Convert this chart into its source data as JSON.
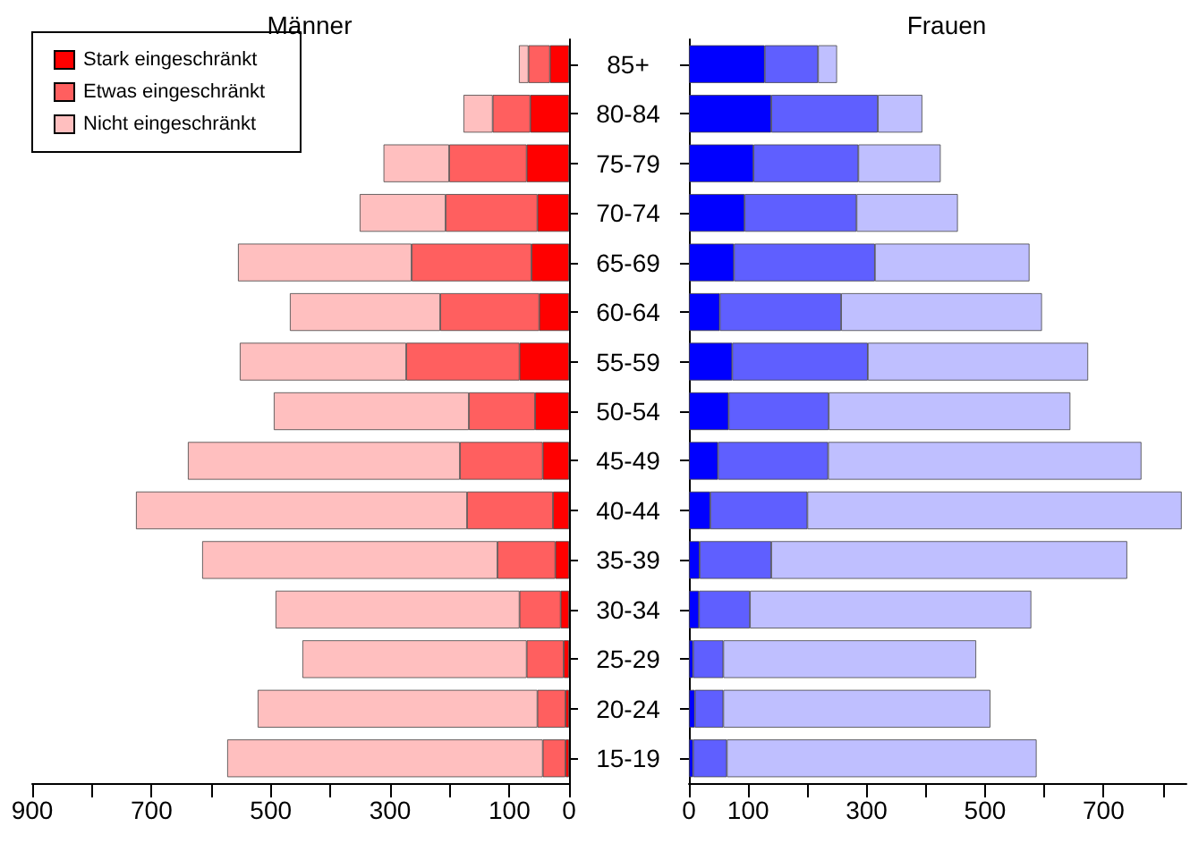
{
  "chart_data": [
    {
      "type": "bar",
      "title": "Männer",
      "orientation": "horizontal",
      "stacked": true,
      "legend": "top left",
      "grid": false,
      "categories": [
        "85+",
        "80-84",
        "75-79",
        "70-74",
        "65-69",
        "60-64",
        "55-59",
        "50-54",
        "45-49",
        "40-44",
        "35-39",
        "30-34",
        "25-29",
        "20-24",
        "15-19"
      ],
      "series": [
        {
          "name": "Stark eingeschränkt",
          "color": "#ff0000",
          "values": [
            32,
            65,
            71,
            53,
            63,
            50,
            83,
            57,
            44,
            27,
            23,
            14,
            9,
            6,
            6
          ]
        },
        {
          "name": "Etwas eingeschränkt",
          "color": "#ff5f5f",
          "values": [
            36,
            63,
            130,
            154,
            201,
            166,
            190,
            111,
            139,
            144,
            97,
            69,
            62,
            47,
            38
          ]
        },
        {
          "name": "Nicht eingeschränkt",
          "color": "#ffbfbf",
          "values": [
            16,
            49,
            110,
            144,
            291,
            252,
            279,
            327,
            456,
            555,
            495,
            409,
            376,
            469,
            529
          ]
        }
      ],
      "xlim": [
        900,
        0
      ],
      "xticks": [
        900,
        {
          "value": 800,
          "label": null
        },
        700,
        {
          "value": 600,
          "label": null
        },
        500,
        {
          "value": 400,
          "label": null
        },
        300,
        {
          "value": 200,
          "label": null
        },
        100,
        0
      ]
    },
    {
      "type": "bar",
      "title": "Frauen",
      "orientation": "horizontal",
      "stacked": true,
      "grid": false,
      "categories": [
        null,
        null,
        null,
        null,
        null,
        null,
        null,
        null,
        null,
        null,
        null,
        null,
        null,
        null,
        null
      ],
      "series": [
        {
          "color": "#0000ff",
          "values": [
            128,
            139,
            109,
            94,
            76,
            52,
            73,
            67,
            49,
            36,
            18,
            17,
            7,
            10,
            7
          ]
        },
        {
          "color": "#5f5fff",
          "values": [
            90,
            180,
            177,
            189,
            238,
            205,
            229,
            169,
            186,
            164,
            121,
            86,
            51,
            48,
            57
          ]
        },
        {
          "color": "#bfbfff",
          "values": [
            32,
            75,
            139,
            171,
            261,
            339,
            372,
            408,
            529,
            632,
            601,
            475,
            427,
            451,
            523
          ]
        }
      ],
      "xlim": [
        0,
        840
      ],
      "xticks": [
        0,
        100,
        {
          "value": 200,
          "label": null
        },
        300,
        {
          "value": 400,
          "label": null
        },
        500,
        {
          "value": 600,
          "label": null
        },
        700,
        {
          "value": 800,
          "label": null
        }
      ]
    }
  ]
}
